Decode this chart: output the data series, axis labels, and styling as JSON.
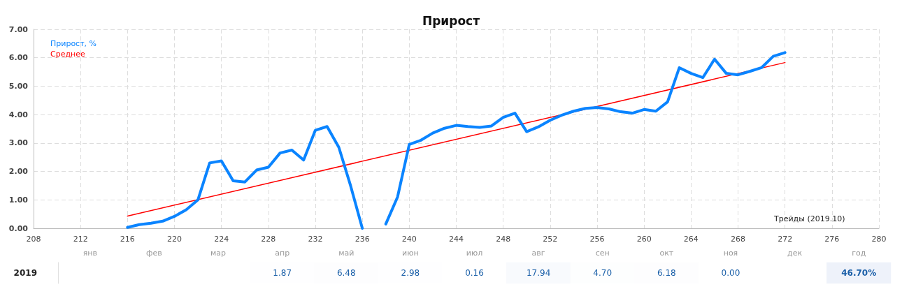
{
  "chart_data": [
    {
      "type": "line",
      "title": "Прирост",
      "xlabel": "Трейды (2019.10)",
      "xlim": [
        208,
        280
      ],
      "xticks": [
        208,
        212,
        216,
        220,
        224,
        228,
        232,
        236,
        240,
        244,
        248,
        252,
        256,
        260,
        264,
        268,
        272,
        276,
        280
      ],
      "ylim": [
        0,
        7
      ],
      "yticks": [
        {
          "value": 0,
          "label": "0.00"
        },
        {
          "value": 1,
          "label": "1.00"
        },
        {
          "value": 2,
          "label": "2.00"
        },
        {
          "value": 3,
          "label": "3.00"
        },
        {
          "value": 4,
          "label": "4.00"
        },
        {
          "value": 5,
          "label": "5.00"
        },
        {
          "value": 6,
          "label": "6.00"
        },
        {
          "value": 7,
          "label": "7.00"
        }
      ],
      "grid": true,
      "legend": "top left",
      "marker": "none",
      "line_style": "solid",
      "series": [
        {
          "name": "Прирост, %",
          "color": "#0a84ff",
          "x": [
            216,
            217,
            218,
            219,
            220,
            221,
            222,
            223,
            224,
            225,
            226,
            227,
            228,
            229,
            230,
            231,
            232,
            233,
            234,
            235,
            236,
            237,
            238,
            239,
            240,
            241,
            242,
            243,
            244,
            245,
            246,
            247,
            248,
            249,
            250,
            251,
            252,
            253,
            254,
            255,
            256,
            257,
            258,
            259,
            260,
            261,
            262,
            263,
            264,
            265,
            266,
            267,
            268,
            269,
            270,
            271,
            272
          ],
          "values": [
            0.03,
            0.13,
            0.18,
            0.25,
            0.42,
            0.65,
            1.0,
            2.3,
            2.37,
            1.67,
            1.63,
            2.05,
            2.15,
            2.65,
            2.75,
            2.4,
            3.45,
            3.58,
            2.85,
            1.5,
            0,
            null,
            0.15,
            1.1,
            2.95,
            3.1,
            3.35,
            3.52,
            3.62,
            3.58,
            3.55,
            3.6,
            3.9,
            4.05,
            3.4,
            3.57,
            3.8,
            3.98,
            4.12,
            4.22,
            4.25,
            4.2,
            4.1,
            4.05,
            4.18,
            4.12,
            4.45,
            5.65,
            5.45,
            5.3,
            5.95,
            5.45,
            5.4,
            5.52,
            5.65,
            6.05,
            6.18
          ]
        },
        {
          "name": "Среднее",
          "color": "#ff0000",
          "x": [
            216,
            272
          ],
          "values": [
            0.43,
            5.83
          ]
        }
      ]
    },
    {
      "type": "heatmap",
      "categories": [
        "янв",
        "фев",
        "мар",
        "апр",
        "май",
        "июн",
        "июл",
        "авг",
        "сен",
        "окт",
        "ноя",
        "дек",
        "год"
      ],
      "y_categories": [
        "2019"
      ],
      "cells": [
        [
          null,
          null,
          null,
          1.87,
          6.48,
          2.98,
          0.16,
          17.94,
          4.7,
          6.18,
          0.0,
          null,
          46.7
        ]
      ],
      "cell_labels": [
        [
          null,
          null,
          null,
          "1.87",
          "6.48",
          "2.98",
          "0.16",
          "17.94",
          "4.70",
          "6.18",
          "0.00",
          null,
          "46.70%"
        ]
      ]
    }
  ]
}
